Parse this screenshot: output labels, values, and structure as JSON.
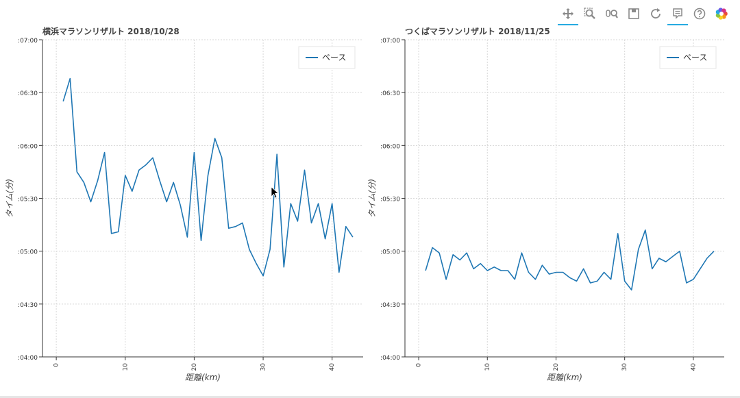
{
  "toolbar": {
    "tools": [
      {
        "name": "pan-tool-icon",
        "active": true
      },
      {
        "name": "box-zoom-tool-icon",
        "active": false
      },
      {
        "name": "wheel-zoom-tool-icon",
        "active": false
      },
      {
        "name": "save-tool-icon",
        "active": false
      },
      {
        "name": "reset-tool-icon",
        "active": false
      },
      {
        "name": "hover-tool-icon",
        "active": true
      },
      {
        "name": "help-tool-icon",
        "active": false
      },
      {
        "name": "bokeh-logo-icon",
        "active": false
      }
    ]
  },
  "chart_data": [
    {
      "type": "line",
      "title": "横浜マラソンリザルト 2018/10/28",
      "xlabel": "距離(km)",
      "ylabel": "タイム(分)",
      "xlim": [
        -2,
        44.5
      ],
      "ylim": [
        240,
        420
      ],
      "xticks": [
        0,
        10,
        20,
        30,
        40
      ],
      "yticks": [
        240,
        270,
        300,
        330,
        360,
        390,
        420
      ],
      "ytick_labels": [
        ":04:00",
        ":04:30",
        ":05:00",
        ":05:30",
        ":06:00",
        ":06:30",
        ":07:00"
      ],
      "grid": true,
      "legend_position": "top-right",
      "line_color": "#1f77b4",
      "series": [
        {
          "name": "ペース",
          "x": [
            1,
            2,
            3,
            4,
            5,
            6,
            7,
            8,
            9,
            10,
            11,
            12,
            13,
            14,
            15,
            16,
            17,
            18,
            19,
            20,
            21,
            22,
            23,
            24,
            25,
            26,
            27,
            28,
            29,
            30,
            31,
            32,
            33,
            34,
            35,
            36,
            37,
            38,
            39,
            40,
            41,
            42,
            43
          ],
          "values": [
            385,
            398,
            345,
            339,
            328,
            340,
            356,
            310,
            311,
            343,
            334,
            346,
            349,
            353,
            340,
            328,
            339,
            326,
            308,
            356,
            306,
            343,
            364,
            353,
            313,
            314,
            316,
            301,
            293,
            286,
            301,
            355,
            291,
            327,
            317,
            346,
            316,
            327,
            307,
            327,
            288,
            314,
            308
          ]
        }
      ]
    },
    {
      "type": "line",
      "title": "つくばマラソンリザルト 2018/11/25",
      "xlabel": "距離(km)",
      "ylabel": "タイム(分)",
      "xlim": [
        -2,
        44.5
      ],
      "ylim": [
        240,
        420
      ],
      "xticks": [
        0,
        10,
        20,
        30,
        40
      ],
      "yticks": [
        240,
        270,
        300,
        330,
        360,
        390,
        420
      ],
      "ytick_labels": [
        ":04:00",
        ":04:30",
        ":05:00",
        ":05:30",
        ":06:00",
        ":06:30",
        ":07:00"
      ],
      "grid": true,
      "legend_position": "top-right",
      "line_color": "#1f77b4",
      "series": [
        {
          "name": "ペース",
          "x": [
            1,
            2,
            3,
            4,
            5,
            6,
            7,
            8,
            9,
            10,
            11,
            12,
            13,
            14,
            15,
            16,
            17,
            18,
            19,
            20,
            21,
            22,
            23,
            24,
            25,
            26,
            27,
            28,
            29,
            30,
            31,
            32,
            33,
            34,
            35,
            36,
            37,
            38,
            39,
            40,
            41,
            42,
            43
          ],
          "values": [
            289,
            302,
            299,
            284,
            298,
            295,
            299,
            290,
            293,
            289,
            291,
            289,
            289,
            284,
            299,
            288,
            284,
            292,
            287,
            288,
            288,
            285,
            283,
            290,
            282,
            283,
            288,
            284,
            310,
            283,
            278,
            301,
            312,
            290,
            296,
            294,
            297,
            300,
            282,
            284,
            290,
            296,
            300
          ]
        }
      ]
    }
  ]
}
